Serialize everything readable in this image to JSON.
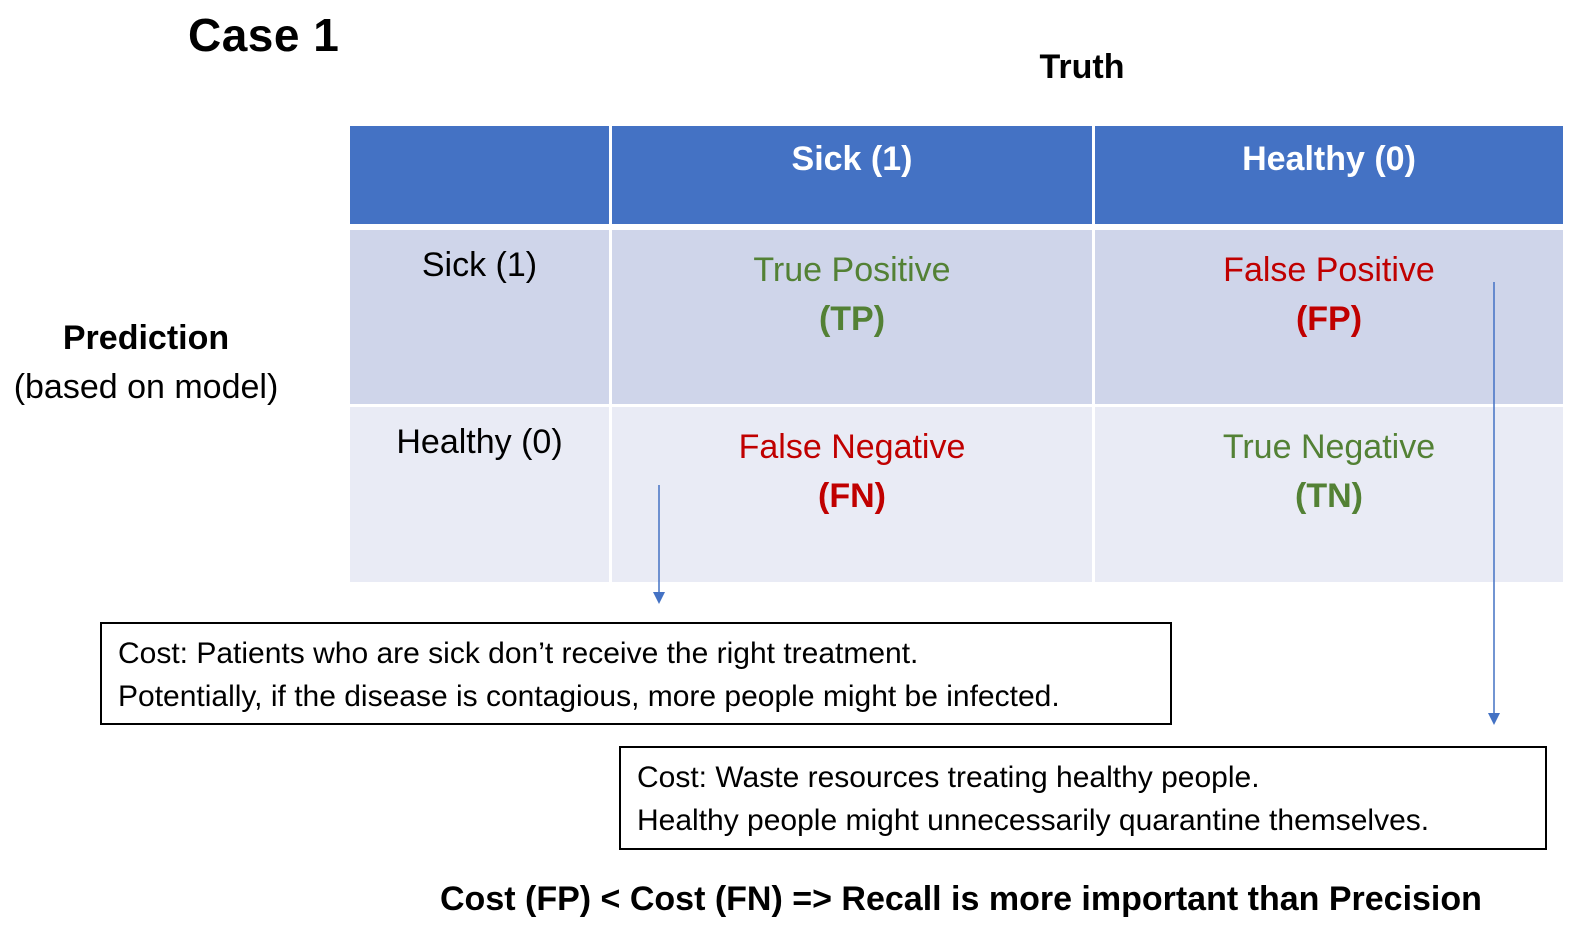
{
  "title": "Case 1",
  "truth_label": "Truth",
  "prediction_label": "Prediction",
  "prediction_sublabel": "(based on model)",
  "table": {
    "col_headers": [
      "Sick (1)",
      "Healthy (0)"
    ],
    "row_labels": [
      "Sick (1)",
      "Healthy (0)"
    ],
    "cells": {
      "tp": {
        "name": "True Positive",
        "abbr": "(TP)",
        "color": "#538135"
      },
      "fp": {
        "name": "False Positive",
        "abbr": "(FP)",
        "color": "#c00000"
      },
      "fn": {
        "name": "False Negative",
        "abbr": "(FN)",
        "color": "#c00000"
      },
      "tn": {
        "name": "True Negative",
        "abbr": "(TN)",
        "color": "#538135"
      }
    },
    "header_color": "#4472c4"
  },
  "cost_fn": {
    "line1": "Cost: Patients who are sick don’t receive the right treatment.",
    "line2": "Potentially, if the disease is contagious, more people might be infected."
  },
  "cost_fp": {
    "line1": "Cost: Waste resources treating healthy people.",
    "line2": "Healthy people might unnecessarily quarantine themselves."
  },
  "conclusion": "Cost (FP) < Cost (FN) => Recall is more important than Precision"
}
